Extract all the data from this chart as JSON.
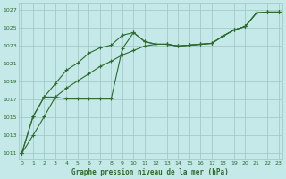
{
  "title": "Graphe pression niveau de la mer (hPa)",
  "bg_color": "#c5e8e8",
  "grid_color": "#9ec4c4",
  "line_color": "#2d6b2d",
  "xlim": [
    -0.3,
    23.3
  ],
  "ylim": [
    1010.3,
    1027.8
  ],
  "x_ticks": [
    0,
    1,
    2,
    3,
    4,
    5,
    6,
    7,
    8,
    9,
    10,
    11,
    12,
    13,
    14,
    15,
    16,
    17,
    18,
    19,
    20,
    21,
    22,
    23
  ],
  "y_ticks": [
    1011,
    1013,
    1015,
    1017,
    1019,
    1021,
    1023,
    1025,
    1027
  ],
  "series1": [
    1011.0,
    1015.1,
    1017.3,
    1018.8,
    1020.3,
    1021.1,
    1022.2,
    1022.8,
    1023.1,
    1024.2,
    1024.5,
    1023.5,
    1023.2,
    1023.2,
    1023.0,
    1023.1,
    1023.2,
    1023.3,
    1024.1,
    1024.8,
    1025.2,
    1026.7,
    1026.8,
    1026.8
  ],
  "series2": [
    1011.0,
    1015.1,
    1017.3,
    1017.3,
    1017.1,
    1017.1,
    1017.1,
    1017.1,
    1017.1,
    1022.7,
    1024.5,
    1023.5,
    1023.2,
    1023.2,
    1023.0,
    1023.1,
    1023.2,
    1023.3,
    1024.1,
    1024.8,
    1025.2,
    1026.7,
    1026.8,
    1026.8
  ],
  "series3": [
    1011.0,
    1013.0,
    1015.1,
    1017.3,
    1018.3,
    1019.1,
    1019.9,
    1020.7,
    1021.3,
    1022.0,
    1022.5,
    1023.0,
    1023.2,
    1023.2,
    1023.0,
    1023.1,
    1023.2,
    1023.3,
    1024.1,
    1024.8,
    1025.2,
    1026.7,
    1026.8,
    1026.8
  ]
}
